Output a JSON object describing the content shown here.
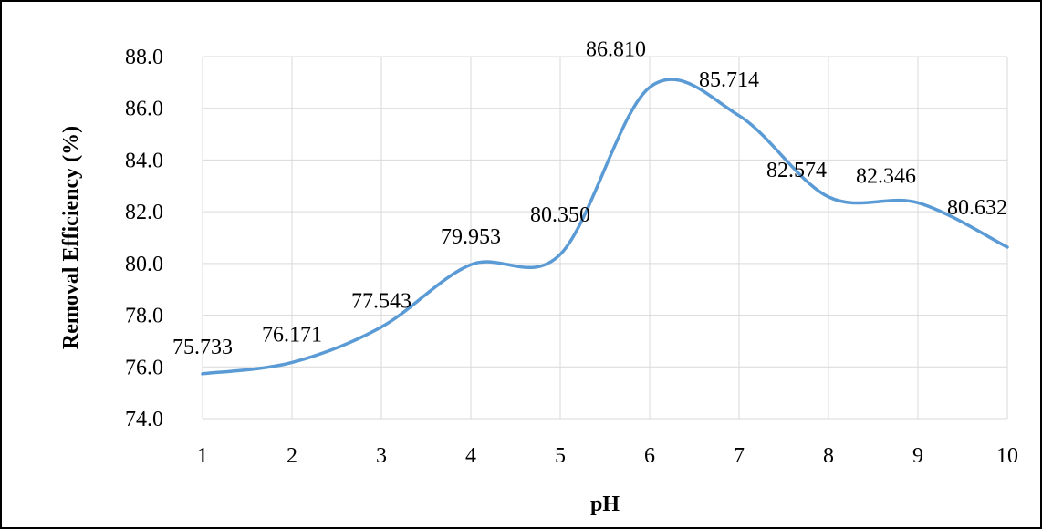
{
  "chart_data": {
    "type": "line",
    "smooth": true,
    "x": [
      1,
      2,
      3,
      4,
      5,
      6,
      7,
      8,
      9,
      10
    ],
    "series": [
      {
        "values": [
          75.733,
          76.171,
          77.543,
          79.953,
          80.35,
          86.81,
          85.714,
          82.574,
          82.346,
          80.632
        ],
        "data_labels": [
          "75.733",
          "76.171",
          "77.543",
          "79.953",
          "80.350",
          "86.810",
          "85.714",
          "82.574",
          "82.346",
          "80.632"
        ],
        "color": "#5b9bd5"
      }
    ],
    "xlabel": "pH",
    "ylabel": "Removal Efficiency (%)",
    "ylim": [
      74.0,
      88.0
    ],
    "xlim": [
      1,
      10
    ],
    "y_ticks": [
      "74.0",
      "76.0",
      "78.0",
      "80.0",
      "82.0",
      "84.0",
      "86.0",
      "88.0"
    ],
    "x_ticks": [
      "1",
      "2",
      "3",
      "4",
      "5",
      "6",
      "7",
      "8",
      "9",
      "10"
    ],
    "grid": true,
    "legend": false
  }
}
